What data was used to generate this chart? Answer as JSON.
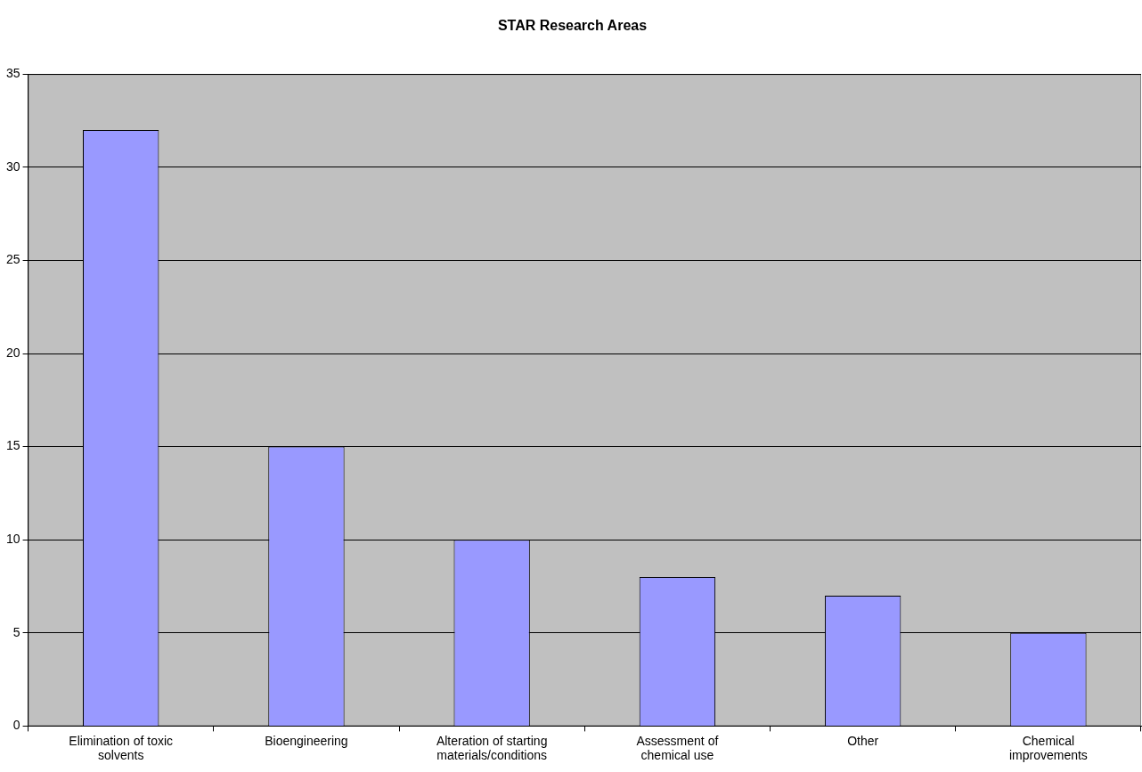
{
  "chart_data": {
    "type": "bar",
    "title": "STAR Research Areas",
    "categories": [
      "Elimination of toxic solvents",
      "Bioengineering",
      "Alteration of starting materials/conditions",
      "Assessment of chemical use",
      "Other",
      "Chemical improvements"
    ],
    "values": [
      32,
      15,
      10,
      8,
      7,
      5
    ],
    "color": "#9999ff",
    "ylim": [
      0,
      35
    ],
    "yticks": [
      0,
      5,
      10,
      15,
      20,
      25,
      30,
      35
    ],
    "grid": "y",
    "legend": false
  }
}
